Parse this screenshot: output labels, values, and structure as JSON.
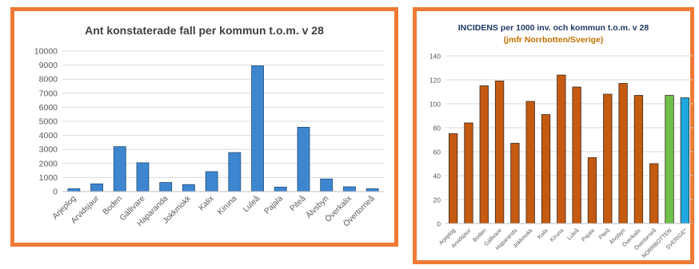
{
  "chart_data": [
    {
      "type": "bar",
      "title": "Ant konstaterade fall per kommun t.o.m. v 28",
      "categories": [
        "Arjeplog",
        "Arvidsjaur",
        "Boden",
        "Gällivare",
        "Haparanda",
        "Jokkmokk",
        "Kalix",
        "Kiruna",
        "Luleå",
        "Pajala",
        "Piteå",
        "Älvsbyn",
        "Överkalix",
        "Övertorneå"
      ],
      "values": [
        200,
        550,
        3200,
        2050,
        650,
        500,
        1420,
        2780,
        8950,
        320,
        4580,
        900,
        340,
        200
      ],
      "yticks": [
        "0",
        "1000",
        "2000",
        "3000",
        "4000",
        "5000",
        "6000",
        "7000",
        "8000",
        "9000",
        "10000"
      ],
      "ylim": [
        0,
        10000
      ],
      "grid": true,
      "color": "#3f86d0"
    },
    {
      "type": "bar",
      "title": "INCIDENS per 1000 inv. och kommun t.o.m. v 28",
      "subtitle": "(jmfr Norrbotten/Sverige)",
      "categories": [
        "Arjeplog",
        "Arvidsjaur",
        "Boden",
        "Gällivare",
        "Haparanda",
        "Jokkmokk",
        "Kalix",
        "Kiruna",
        "Luleå",
        "Pajala",
        "Piteå",
        "Älvsbyn",
        "Överkalix",
        "Övertorneå",
        "NORRBOTTEN",
        "SVERIGE*"
      ],
      "values": [
        75,
        84,
        115,
        119,
        67,
        102,
        91,
        124,
        114,
        55,
        108,
        117,
        107,
        50,
        107,
        105
      ],
      "colors": [
        "#c55a11",
        "#c55a11",
        "#c55a11",
        "#c55a11",
        "#c55a11",
        "#c55a11",
        "#c55a11",
        "#c55a11",
        "#c55a11",
        "#c55a11",
        "#c55a11",
        "#c55a11",
        "#c55a11",
        "#c55a11",
        "#70c04a",
        "#1fa8e0"
      ],
      "yticks": [
        "0",
        "20",
        "40",
        "60",
        "80",
        "100",
        "120",
        "140"
      ],
      "ylim": [
        0,
        140
      ],
      "grid": true
    }
  ]
}
